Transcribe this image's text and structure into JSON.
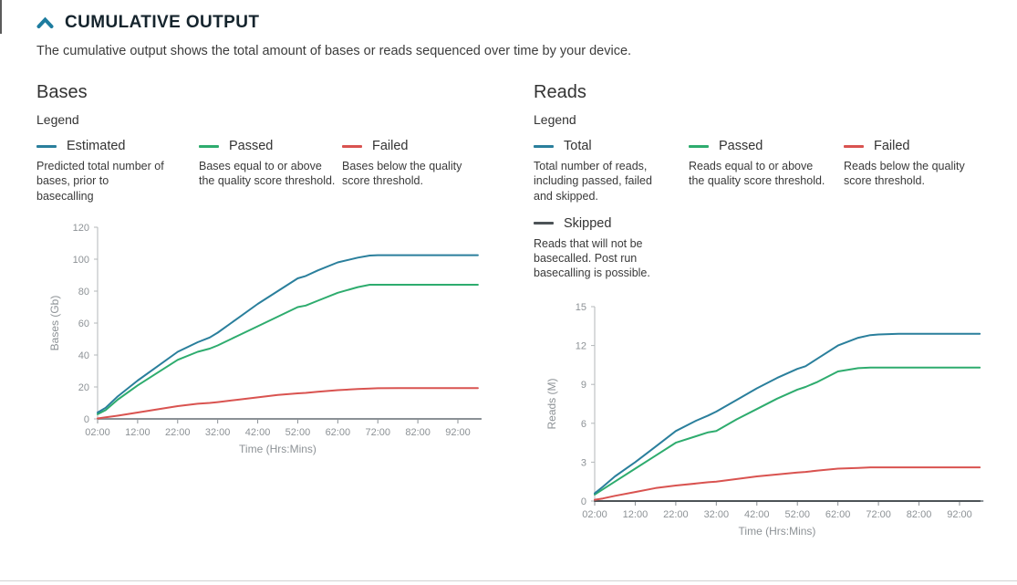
{
  "header": {
    "title": "CUMULATIVE OUTPUT",
    "collapse_icon": "chevron-up",
    "description": "The cumulative output shows the total amount of bases or reads sequenced over time by your device."
  },
  "colors": {
    "accent": "#1d7c9f",
    "estimated": "#2a7f9c",
    "passed": "#2eac6e",
    "failed": "#d95350",
    "skipped": "#4d5357",
    "axis": "#8b9196",
    "axis_light": "#b3b7ba",
    "axis_text": "#8d9296"
  },
  "bases": {
    "title": "Bases",
    "legend_title": "Legend",
    "legend": [
      {
        "label": "Estimated",
        "color": "#2a7f9c",
        "description": "Predicted total number of bases, prior to basecalling"
      },
      {
        "label": "Passed",
        "color": "#2eac6e",
        "description": "Bases equal to or above the quality score threshold."
      },
      {
        "label": "Failed",
        "color": "#d95350",
        "description": "Bases below the quality score threshold."
      }
    ]
  },
  "reads": {
    "title": "Reads",
    "legend_title": "Legend",
    "legend": [
      {
        "label": "Total",
        "color": "#2a7f9c",
        "description": "Total number of reads, including passed, failed and skipped."
      },
      {
        "label": "Passed",
        "color": "#2eac6e",
        "description": "Reads equal to or above the quality score threshold."
      },
      {
        "label": "Failed",
        "color": "#d95350",
        "description": "Reads below the quality score threshold."
      },
      {
        "label": "Skipped",
        "color": "#4d5357",
        "description": "Reads that will not be basecalled. Post run basecalling is possible."
      }
    ]
  },
  "chart_data": [
    {
      "type": "line",
      "title": "Bases",
      "xlabel": "Time (Hrs:Mins)",
      "ylabel": "Bases (Gb)",
      "ylim": [
        0,
        120
      ],
      "yticks": [
        0,
        20,
        40,
        60,
        80,
        100,
        120
      ],
      "xlim": [
        2,
        97
      ],
      "xticks_hours": [
        2,
        12,
        22,
        32,
        42,
        52,
        62,
        72,
        82,
        92
      ],
      "xtick_labels": [
        "02:00",
        "12:00",
        "22:00",
        "32:00",
        "42:00",
        "52:00",
        "62:00",
        "72:00",
        "82:00",
        "92:00"
      ],
      "grid": false,
      "legend_position": "above",
      "x": [
        2,
        4,
        7,
        12,
        17,
        22,
        27,
        30,
        32,
        37,
        42,
        47,
        52,
        54,
        57,
        62,
        67,
        70,
        72,
        77,
        82,
        87,
        92,
        97
      ],
      "series": [
        {
          "name": "Estimated",
          "color": "#2a7f9c",
          "values": [
            4,
            7,
            14,
            24,
            33,
            42,
            48,
            51,
            54,
            63,
            72,
            80,
            88,
            89.5,
            93,
            98,
            101,
            102.3,
            102.5,
            102.5,
            102.5,
            102.5,
            102.5,
            102.5
          ]
        },
        {
          "name": "Passed",
          "color": "#2eac6e",
          "values": [
            3,
            5.5,
            12,
            21,
            29,
            37,
            42,
            44,
            46,
            52,
            58,
            64,
            70,
            71,
            74,
            79,
            82.5,
            84,
            84,
            84,
            84,
            84,
            84,
            84
          ]
        },
        {
          "name": "Failed",
          "color": "#d95350",
          "values": [
            0.3,
            1,
            2,
            4,
            6,
            8,
            9.5,
            10,
            10.5,
            12,
            13.5,
            15,
            16,
            16.3,
            17,
            18,
            18.7,
            19,
            19.2,
            19.3,
            19.3,
            19.3,
            19.3,
            19.3
          ]
        }
      ]
    },
    {
      "type": "line",
      "title": "Reads",
      "xlabel": "Time (Hrs:Mins)",
      "ylabel": "Reads (M)",
      "ylim": [
        0,
        15
      ],
      "yticks": [
        0,
        3,
        6,
        9,
        12,
        15
      ],
      "xlim": [
        2,
        97
      ],
      "xticks_hours": [
        2,
        12,
        22,
        32,
        42,
        52,
        62,
        72,
        82,
        92
      ],
      "xtick_labels": [
        "02:00",
        "12:00",
        "22:00",
        "32:00",
        "42:00",
        "52:00",
        "62:00",
        "72:00",
        "82:00",
        "92:00"
      ],
      "grid": false,
      "legend_position": "above",
      "x": [
        2,
        4,
        7,
        12,
        17,
        22,
        27,
        30,
        32,
        37,
        42,
        47,
        52,
        54,
        57,
        62,
        67,
        70,
        72,
        77,
        82,
        87,
        92,
        97
      ],
      "series": [
        {
          "name": "Total",
          "color": "#2a7f9c",
          "values": [
            0.6,
            1.1,
            1.9,
            3.0,
            4.2,
            5.4,
            6.2,
            6.6,
            6.9,
            7.8,
            8.7,
            9.5,
            10.2,
            10.4,
            11.0,
            12.0,
            12.6,
            12.8,
            12.85,
            12.9,
            12.9,
            12.9,
            12.9,
            12.9
          ]
        },
        {
          "name": "Passed",
          "color": "#2eac6e",
          "values": [
            0.5,
            0.9,
            1.5,
            2.5,
            3.5,
            4.5,
            5.0,
            5.3,
            5.4,
            6.3,
            7.1,
            7.9,
            8.6,
            8.8,
            9.2,
            10.0,
            10.25,
            10.3,
            10.3,
            10.3,
            10.3,
            10.3,
            10.3,
            10.3
          ]
        },
        {
          "name": "Failed",
          "color": "#d95350",
          "values": [
            0.1,
            0.2,
            0.4,
            0.7,
            1.0,
            1.2,
            1.35,
            1.45,
            1.5,
            1.7,
            1.9,
            2.05,
            2.2,
            2.25,
            2.35,
            2.5,
            2.55,
            2.6,
            2.6,
            2.6,
            2.6,
            2.6,
            2.6,
            2.6
          ]
        },
        {
          "name": "Skipped",
          "color": "#4d5357",
          "values": [
            0,
            0,
            0,
            0,
            0,
            0,
            0,
            0,
            0,
            0,
            0,
            0,
            0,
            0,
            0,
            0,
            0,
            0,
            0,
            0,
            0,
            0,
            0,
            0
          ]
        }
      ]
    }
  ]
}
